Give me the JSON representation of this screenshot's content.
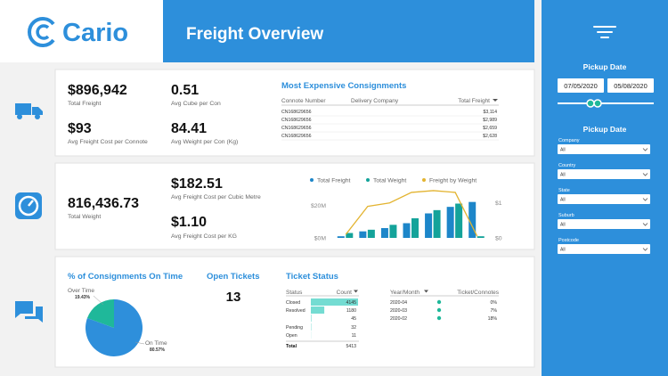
{
  "logo": {
    "text": "Cario"
  },
  "header": {
    "title": "Freight Overview"
  },
  "filters": {
    "date_title": "Pickup Date",
    "date_from": "07/05/2020",
    "date_to": "05/08/2020",
    "list_title": "Pickup Date",
    "dropdowns": [
      {
        "label": "Company",
        "value": "All"
      },
      {
        "label": "Country",
        "value": "All"
      },
      {
        "label": "State",
        "value": "All"
      },
      {
        "label": "Suburb",
        "value": "All"
      },
      {
        "label": "Postcode",
        "value": "All"
      }
    ]
  },
  "summary_kpis": [
    {
      "value": "$896,942",
      "label": "Total Freight"
    },
    {
      "value": "0.51",
      "label": "Avg Cube per Con"
    },
    {
      "value": "$93",
      "label": "Avg Freight Cost per Connote"
    },
    {
      "value": "84.41",
      "label": "Avg Weight per Con (Kg)"
    }
  ],
  "expensive_consignments": {
    "title": "Most Expensive Consignments",
    "columns": [
      "Connote Number",
      "Delivery Company",
      "Total Freight"
    ],
    "rows": [
      {
        "connote": "CN168629656",
        "freight": "$3,114"
      },
      {
        "connote": "CN168629656",
        "freight": "$2,989"
      },
      {
        "connote": "CN168629656",
        "freight": "$2,659"
      },
      {
        "connote": "CN168629656",
        "freight": "$2,628"
      }
    ]
  },
  "weight_kpis": [
    {
      "value": "816,436.73",
      "label": "Total Weight"
    },
    {
      "value": "$182.51",
      "label": "Avg Freight Cost per Cubic Metre"
    },
    {
      "value": "$1.10",
      "label": "Avg Freight Cost per KG"
    }
  ],
  "freight_chart": {
    "type": "bar",
    "categories": [
      null,
      null,
      null,
      null,
      null,
      null,
      null
    ],
    "series": [
      {
        "name": "Total Freight",
        "color": "#1d86c9",
        "values": [
          1000000,
          4000000,
          6000000,
          9000000,
          15000000,
          19000000,
          22000000
        ]
      },
      {
        "name": "Total Weight",
        "color": "#14a39a",
        "values": [
          3000000,
          5000000,
          8000000,
          12000000,
          17000000,
          21000000,
          1000000
        ]
      },
      {
        "name": "Freight by Weight",
        "color": "#e3b431",
        "axis": "y2",
        "values": [
          0.1,
          0.9,
          1.0,
          1.3,
          1.35,
          1.3,
          0.05
        ]
      }
    ],
    "ylim": [
      0,
      30000000
    ],
    "yticks": [
      {
        "value": 0,
        "label": "$0M"
      },
      {
        "value": 20000000,
        "label": "$20M"
      }
    ],
    "y2lim": [
      0,
      1.4
    ],
    "y2ticks": [
      {
        "value": 0,
        "label": "$0"
      },
      {
        "value": 1,
        "label": "$1"
      }
    ]
  },
  "on_time_chart": {
    "type": "pie",
    "title": "% of Consignments On Time",
    "categories": [
      "Over Time",
      "On Time"
    ],
    "values": [
      19.43,
      80.57
    ],
    "value_labels": [
      "19.43%",
      "80.57%"
    ],
    "colors": [
      "#1fb89a",
      "#2e8fdb"
    ]
  },
  "open_tickets": {
    "title": "Open Tickets",
    "value": 13
  },
  "ticket_status": {
    "title": "Ticket Status",
    "columns": [
      "Status",
      "Count"
    ],
    "bar_color": "#74dcd2",
    "rows": [
      {
        "status": "Closed",
        "count": 4145
      },
      {
        "status": "Resolved",
        "count": 1180
      },
      {
        "status": null,
        "count": 45
      },
      {
        "status": "Pending",
        "count": 32
      },
      {
        "status": "Open",
        "count": 11
      }
    ],
    "total": {
      "label": "Total",
      "count": 5413
    }
  },
  "ticket_connotes": {
    "columns": [
      "Year/Month",
      "Ticket/Connotes"
    ],
    "rows": [
      {
        "month": "2020-04",
        "value": "0%"
      },
      {
        "month": "2020-03",
        "value": "7%"
      },
      {
        "month": "2020-02",
        "value": "18%"
      }
    ]
  }
}
